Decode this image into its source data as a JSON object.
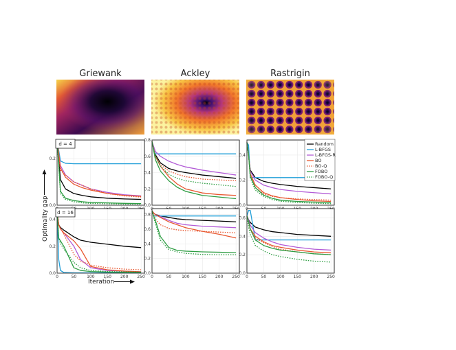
{
  "functions": [
    "Griewank",
    "Ackley",
    "Rastrigin"
  ],
  "dims": [
    "d = 4",
    "d = 16"
  ],
  "ylabel": "Optimality gap",
  "xlabel": "Iteration",
  "legend_names": [
    "Random",
    "L-BFGS",
    "L-BFGS-R",
    "BO",
    "BO-Q",
    "FOBO",
    "FOBO-Q"
  ],
  "colors": {
    "Random": "#000000",
    "L-BFGS": "#1f9ed8",
    "L-BFGS-R": "#b25ad6",
    "BO": "#e8572f",
    "BO-Q": "#e8572f",
    "FOBO": "#2f9e44",
    "FOBO-Q": "#2f9e44"
  },
  "chart_data": [
    {
      "type": "line",
      "function": "Griewank",
      "dim": "d = 4",
      "xlim": [
        0,
        260
      ],
      "ylim": [
        0,
        0.28
      ],
      "xticks": [
        "0",
        "50",
        "100",
        "150",
        "200",
        "250"
      ],
      "yticks": [
        "0.0",
        "0.2"
      ],
      "x": [
        0,
        10,
        25,
        50,
        75,
        100,
        150,
        200,
        250
      ],
      "series": [
        {
          "name": "Random",
          "values": [
            0.28,
            0.11,
            0.07,
            0.05,
            0.042,
            0.036,
            0.03,
            0.027,
            0.025
          ]
        },
        {
          "name": "L-BFGS",
          "values": [
            0.28,
            0.19,
            0.18,
            0.178,
            0.178,
            0.178,
            0.178,
            0.178,
            0.178
          ]
        },
        {
          "name": "L-BFGS-R",
          "values": [
            0.28,
            0.17,
            0.13,
            0.1,
            0.085,
            0.07,
            0.055,
            0.045,
            0.04
          ]
        },
        {
          "name": "BO",
          "values": [
            0.28,
            0.16,
            0.12,
            0.09,
            0.075,
            0.065,
            0.05,
            0.042,
            0.038
          ]
        },
        {
          "name": "BO-Q",
          "values": [
            0.28,
            0.15,
            0.13,
            0.1,
            0.085,
            0.07,
            0.05,
            0.04,
            0.035
          ]
        },
        {
          "name": "FOBO",
          "values": [
            0.28,
            0.06,
            0.03,
            0.02,
            0.015,
            0.012,
            0.01,
            0.008,
            0.007
          ]
        },
        {
          "name": "FOBO-Q",
          "values": [
            0.28,
            0.05,
            0.025,
            0.015,
            0.01,
            0.008,
            0.006,
            0.005,
            0.005
          ]
        }
      ]
    },
    {
      "type": "line",
      "function": "Ackley",
      "dim": "d = 4",
      "xlim": [
        0,
        260
      ],
      "ylim": [
        0,
        0.8
      ],
      "xticks": [
        "0",
        "50",
        "100",
        "150",
        "200",
        "250"
      ],
      "yticks": [
        "0.0",
        "0.2",
        "0.4",
        "0.6",
        "0.8"
      ],
      "x": [
        0,
        10,
        25,
        50,
        75,
        100,
        150,
        200,
        250
      ],
      "series": [
        {
          "name": "Random",
          "values": [
            0.78,
            0.62,
            0.52,
            0.45,
            0.42,
            0.4,
            0.37,
            0.35,
            0.33
          ]
        },
        {
          "name": "L-BFGS",
          "values": [
            0.78,
            0.63,
            0.63,
            0.63,
            0.63,
            0.63,
            0.63,
            0.63,
            0.63
          ]
        },
        {
          "name": "L-BFGS-R",
          "values": [
            0.78,
            0.66,
            0.6,
            0.54,
            0.5,
            0.47,
            0.43,
            0.4,
            0.37
          ]
        },
        {
          "name": "BO",
          "values": [
            0.78,
            0.6,
            0.48,
            0.35,
            0.26,
            0.2,
            0.15,
            0.13,
            0.12
          ]
        },
        {
          "name": "BO-Q",
          "values": [
            0.78,
            0.6,
            0.5,
            0.42,
            0.38,
            0.35,
            0.32,
            0.31,
            0.3
          ]
        },
        {
          "name": "FOBO",
          "values": [
            0.78,
            0.56,
            0.42,
            0.3,
            0.22,
            0.17,
            0.12,
            0.1,
            0.08
          ]
        },
        {
          "name": "FOBO-Q",
          "values": [
            0.78,
            0.6,
            0.48,
            0.38,
            0.33,
            0.3,
            0.27,
            0.25,
            0.23
          ]
        }
      ]
    },
    {
      "type": "line",
      "function": "Rastrigin",
      "dim": "d = 4",
      "xlim": [
        0,
        260
      ],
      "ylim": [
        0,
        0.52
      ],
      "xticks": [
        "0",
        "50",
        "100",
        "150",
        "200",
        "250"
      ],
      "yticks": [
        "0.0",
        "0.2",
        "0.4"
      ],
      "x": [
        0,
        5,
        10,
        25,
        50,
        75,
        100,
        150,
        200,
        250
      ],
      "series": [
        {
          "name": "Random",
          "values": [
            0.5,
            0.4,
            0.28,
            0.22,
            0.19,
            0.175,
            0.165,
            0.15,
            0.14,
            0.13
          ]
        },
        {
          "name": "L-BFGS",
          "values": [
            0.5,
            0.48,
            0.22,
            0.22,
            0.22,
            0.22,
            0.22,
            0.22,
            0.22,
            0.22
          ]
        },
        {
          "name": "L-BFGS-R",
          "values": [
            0.5,
            0.4,
            0.27,
            0.2,
            0.16,
            0.14,
            0.125,
            0.11,
            0.1,
            0.09
          ]
        },
        {
          "name": "BO",
          "values": [
            0.5,
            0.4,
            0.25,
            0.16,
            0.1,
            0.075,
            0.06,
            0.045,
            0.035,
            0.03
          ]
        },
        {
          "name": "BO-Q",
          "values": [
            0.5,
            0.4,
            0.24,
            0.14,
            0.09,
            0.07,
            0.06,
            0.05,
            0.045,
            0.04
          ]
        },
        {
          "name": "FOBO",
          "values": [
            0.5,
            0.4,
            0.23,
            0.14,
            0.08,
            0.055,
            0.04,
            0.03,
            0.025,
            0.02
          ]
        },
        {
          "name": "FOBO-Q",
          "values": [
            0.5,
            0.4,
            0.22,
            0.12,
            0.07,
            0.045,
            0.032,
            0.022,
            0.016,
            0.012
          ]
        }
      ]
    },
    {
      "type": "line",
      "function": "Griewank",
      "dim": "d = 16",
      "xlim": [
        0,
        260
      ],
      "ylim": [
        0,
        0.48
      ],
      "xticks": [
        "0",
        "50",
        "100",
        "150",
        "200",
        "250"
      ],
      "yticks": [
        "0.0",
        "0.2",
        "0.4"
      ],
      "x": [
        0,
        5,
        10,
        20,
        50,
        70,
        100,
        150,
        200,
        250
      ],
      "series": [
        {
          "name": "Random",
          "values": [
            0.46,
            0.36,
            0.34,
            0.32,
            0.27,
            0.245,
            0.23,
            0.215,
            0.2,
            0.19
          ]
        },
        {
          "name": "L-BFGS",
          "values": [
            0.46,
            0.1,
            0.02,
            0.005,
            0.002,
            0.002,
            0.002,
            0.002,
            0.002,
            0.002
          ]
        },
        {
          "name": "L-BFGS-R",
          "values": [
            0.46,
            0.36,
            0.33,
            0.3,
            0.2,
            0.1,
            0.04,
            0.02,
            0.015,
            0.01
          ]
        },
        {
          "name": "BO",
          "values": [
            0.46,
            0.36,
            0.33,
            0.3,
            0.24,
            0.18,
            0.05,
            0.025,
            0.015,
            0.01
          ]
        },
        {
          "name": "BO-Q",
          "values": [
            0.46,
            0.36,
            0.33,
            0.29,
            0.14,
            0.09,
            0.06,
            0.04,
            0.03,
            0.025
          ]
        },
        {
          "name": "FOBO",
          "values": [
            0.46,
            0.26,
            0.24,
            0.2,
            0.04,
            0.02,
            0.012,
            0.008,
            0.006,
            0.005
          ]
        },
        {
          "name": "FOBO-Q",
          "values": [
            0.46,
            0.26,
            0.22,
            0.18,
            0.08,
            0.04,
            0.02,
            0.012,
            0.01,
            0.008
          ]
        }
      ]
    },
    {
      "type": "line",
      "function": "Ackley",
      "dim": "d = 16",
      "xlim": [
        0,
        260
      ],
      "ylim": [
        0,
        0.88
      ],
      "xticks": [
        "0",
        "50",
        "100",
        "150",
        "200",
        "250"
      ],
      "yticks": [
        "0.0",
        "0.2",
        "0.4",
        "0.6",
        "0.8"
      ],
      "x": [
        0,
        5,
        10,
        25,
        50,
        75,
        100,
        150,
        200,
        250
      ],
      "series": [
        {
          "name": "Random",
          "values": [
            0.85,
            0.82,
            0.8,
            0.78,
            0.76,
            0.74,
            0.73,
            0.72,
            0.71,
            0.7
          ]
        },
        {
          "name": "L-BFGS",
          "values": [
            0.85,
            0.78,
            0.78,
            0.78,
            0.78,
            0.78,
            0.78,
            0.78,
            0.78,
            0.78
          ]
        },
        {
          "name": "L-BFGS-R",
          "values": [
            0.85,
            0.82,
            0.8,
            0.77,
            0.72,
            0.68,
            0.66,
            0.64,
            0.63,
            0.62
          ]
        },
        {
          "name": "BO",
          "values": [
            0.85,
            0.82,
            0.8,
            0.76,
            0.7,
            0.66,
            0.62,
            0.57,
            0.53,
            0.48
          ]
        },
        {
          "name": "BO-Q",
          "values": [
            0.85,
            0.8,
            0.74,
            0.66,
            0.61,
            0.59,
            0.58,
            0.57,
            0.56,
            0.55
          ]
        },
        {
          "name": "FOBO",
          "values": [
            0.85,
            0.78,
            0.72,
            0.5,
            0.35,
            0.31,
            0.3,
            0.29,
            0.285,
            0.28
          ]
        },
        {
          "name": "FOBO-Q",
          "values": [
            0.85,
            0.76,
            0.68,
            0.45,
            0.32,
            0.29,
            0.27,
            0.255,
            0.25,
            0.25
          ]
        }
      ]
    },
    {
      "type": "line",
      "function": "Rastrigin",
      "dim": "d = 16",
      "xlim": [
        0,
        260
      ],
      "ylim": [
        0,
        0.7
      ],
      "xticks": [
        "0",
        "50",
        "100",
        "150",
        "200",
        "250"
      ],
      "yticks": [
        "0.0",
        "0.2",
        "0.4",
        "0.6"
      ],
      "x": [
        0,
        5,
        10,
        25,
        50,
        75,
        100,
        150,
        200,
        250
      ],
      "series": [
        {
          "name": "Random",
          "values": [
            0.62,
            0.58,
            0.55,
            0.5,
            0.47,
            0.45,
            0.44,
            0.42,
            0.41,
            0.4
          ]
        },
        {
          "name": "L-BFGS",
          "values": [
            0.62,
            0.68,
            0.68,
            0.36,
            0.36,
            0.36,
            0.36,
            0.36,
            0.36,
            0.36
          ]
        },
        {
          "name": "L-BFGS-R",
          "values": [
            0.62,
            0.58,
            0.52,
            0.44,
            0.38,
            0.34,
            0.31,
            0.28,
            0.26,
            0.25
          ]
        },
        {
          "name": "BO",
          "values": [
            0.62,
            0.56,
            0.48,
            0.4,
            0.34,
            0.3,
            0.28,
            0.25,
            0.23,
            0.22
          ]
        },
        {
          "name": "BO-Q",
          "values": [
            0.62,
            0.55,
            0.47,
            0.38,
            0.33,
            0.29,
            0.26,
            0.23,
            0.21,
            0.2
          ]
        },
        {
          "name": "FOBO",
          "values": [
            0.62,
            0.56,
            0.48,
            0.36,
            0.3,
            0.27,
            0.25,
            0.23,
            0.21,
            0.2
          ]
        },
        {
          "name": "FOBO-Q",
          "values": [
            0.62,
            0.5,
            0.42,
            0.3,
            0.24,
            0.2,
            0.18,
            0.15,
            0.13,
            0.12
          ]
        }
      ]
    }
  ]
}
